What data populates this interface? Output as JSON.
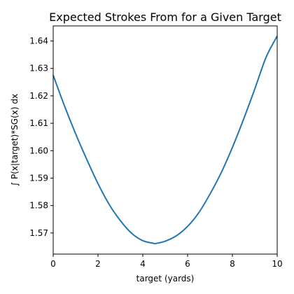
{
  "chart_data": {
    "type": "line",
    "title": "Expected Strokes From for a Given Target",
    "xlabel": "target (yards)",
    "ylabel": "∫ P(x|target)*SG(x) dx",
    "xlim": [
      0,
      10
    ],
    "ylim": [
      1.5623,
      1.6455
    ],
    "x_ticks": [
      0,
      2,
      4,
      6,
      8,
      10
    ],
    "x_tick_labels": [
      "0",
      "2",
      "4",
      "6",
      "8",
      "10"
    ],
    "y_ticks": [
      1.57,
      1.58,
      1.59,
      1.6,
      1.61,
      1.62,
      1.63,
      1.64
    ],
    "y_tick_labels": [
      "1.57",
      "1.58",
      "1.59",
      "1.60",
      "1.61",
      "1.62",
      "1.63",
      "1.64"
    ],
    "grid": false,
    "series": [
      {
        "color": "#1f77b4",
        "x": [
          0,
          0.5,
          1,
          1.5,
          2,
          2.5,
          3,
          3.5,
          4,
          4.5,
          4.6,
          5,
          5.5,
          6,
          6.5,
          7,
          7.5,
          8,
          8.5,
          9,
          9.5,
          10
        ],
        "y": [
          1.6275,
          1.6164,
          1.6062,
          1.5968,
          1.588,
          1.5804,
          1.5745,
          1.5699,
          1.5672,
          1.5662,
          1.5662,
          1.567,
          1.569,
          1.5724,
          1.5774,
          1.5842,
          1.592,
          1.6012,
          1.6115,
          1.6225,
          1.634,
          1.6418
        ]
      }
    ]
  }
}
